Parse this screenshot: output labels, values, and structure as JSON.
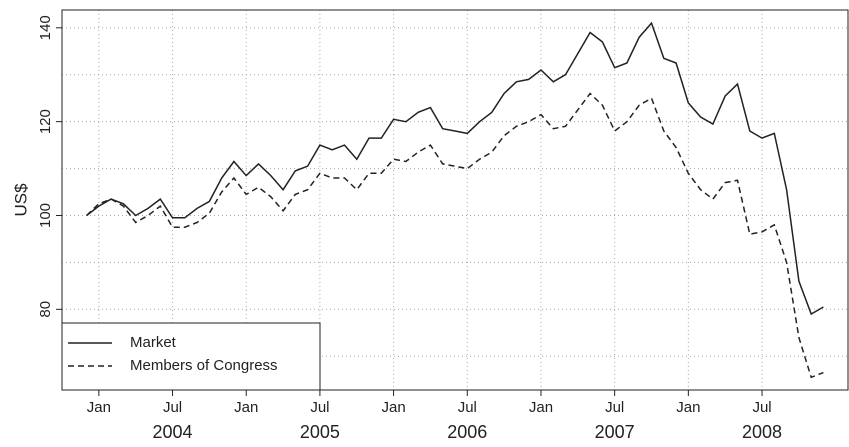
{
  "chart_data": {
    "type": "line",
    "y_label": "US$",
    "x": [
      "2003-12",
      "2004-01",
      "2004-02",
      "2004-03",
      "2004-04",
      "2004-05",
      "2004-06",
      "2004-07",
      "2004-08",
      "2004-09",
      "2004-10",
      "2004-11",
      "2004-12",
      "2005-01",
      "2005-02",
      "2005-03",
      "2005-04",
      "2005-05",
      "2005-06",
      "2005-07",
      "2005-08",
      "2005-09",
      "2005-10",
      "2005-11",
      "2005-12",
      "2006-01",
      "2006-02",
      "2006-03",
      "2006-04",
      "2006-05",
      "2006-06",
      "2006-07",
      "2006-08",
      "2006-09",
      "2006-10",
      "2006-11",
      "2006-12",
      "2007-01",
      "2007-02",
      "2007-03",
      "2007-04",
      "2007-05",
      "2007-06",
      "2007-07",
      "2007-08",
      "2007-09",
      "2007-10",
      "2007-11",
      "2007-12",
      "2008-01",
      "2008-02",
      "2008-03",
      "2008-04",
      "2008-05",
      "2008-06",
      "2008-07",
      "2008-08",
      "2008-09",
      "2008-10",
      "2008-11",
      "2008-12"
    ],
    "series": [
      {
        "name": "Market",
        "color": "#222222",
        "linestyle": "solid",
        "values": [
          100,
          102,
          103.5,
          102.5,
          100,
          101.5,
          103.5,
          99.5,
          99.5,
          101.5,
          103,
          108,
          111.5,
          108.5,
          111,
          108.5,
          105.5,
          109.5,
          110.5,
          115,
          114,
          115,
          112,
          116.5,
          116.5,
          120.5,
          120,
          122,
          123,
          118.5,
          118,
          117.5,
          120,
          122,
          126,
          128.5,
          129,
          131,
          128.5,
          130,
          134.5,
          139,
          137,
          131.5,
          132.5,
          138,
          141,
          133.5,
          132.5,
          124,
          121,
          119.5,
          125.5,
          128,
          118,
          116.5,
          117.5,
          105.5,
          86,
          79,
          80.5
        ]
      },
      {
        "name": "Members of Congress",
        "color": "#222222",
        "linestyle": "dashed",
        "values": [
          100,
          102.5,
          103.5,
          102,
          98.5,
          100,
          102,
          97.5,
          97.5,
          98.5,
          100.5,
          105,
          108,
          104.5,
          106,
          104,
          101,
          104.5,
          105.5,
          109,
          108,
          108,
          105.5,
          109,
          109,
          112,
          111.5,
          113.5,
          115,
          111,
          110.5,
          110,
          112,
          113.5,
          117,
          119,
          120,
          121.5,
          118.5,
          119,
          122.5,
          126,
          123.5,
          118,
          120,
          123.5,
          125,
          118,
          114.5,
          109,
          105.5,
          103.5,
          107,
          107.5,
          96,
          96.5,
          98,
          90,
          74,
          65.5,
          66.5
        ]
      }
    ],
    "xlim": [
      "2003-10",
      "2009-02"
    ],
    "xticks": [
      {
        "value": "2004-01",
        "label": "Jan"
      },
      {
        "value": "2004-07",
        "label": "Jul"
      },
      {
        "value": "2005-01",
        "label": "Jan"
      },
      {
        "value": "2005-07",
        "label": "Jul"
      },
      {
        "value": "2006-01",
        "label": "Jan"
      },
      {
        "value": "2006-07",
        "label": "Jul"
      },
      {
        "value": "2007-01",
        "label": "Jan"
      },
      {
        "value": "2007-07",
        "label": "Jul"
      },
      {
        "value": "2008-01",
        "label": "Jan"
      },
      {
        "value": "2008-07",
        "label": "Jul"
      }
    ],
    "year_labels": [
      {
        "value": "2004-07",
        "label": "2004"
      },
      {
        "value": "2005-07",
        "label": "2005"
      },
      {
        "value": "2006-07",
        "label": "2006"
      },
      {
        "value": "2007-07",
        "label": "2007"
      },
      {
        "value": "2008-07",
        "label": "2008"
      }
    ],
    "ylim": [
      62.8,
      143.8
    ],
    "yticks": [
      80,
      100,
      120,
      140
    ],
    "ygrid": [
      70,
      80,
      90,
      100,
      110,
      120,
      130,
      140
    ],
    "grid": true,
    "legend": "bottom-left"
  }
}
